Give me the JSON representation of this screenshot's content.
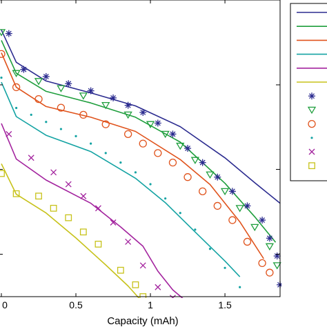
{
  "chart_data": {
    "type": "line",
    "xlabel": "Capacity (mAh)",
    "ylabel": "",
    "title": "",
    "xlim": [
      0,
      1.87
    ],
    "ylim": [
      0,
      1
    ],
    "x_ticks": [
      "0",
      "0.5",
      "1",
      "1.5"
    ],
    "x_tick_values": [
      0,
      0.5,
      1,
      1.5
    ],
    "y_tick_values": [
      0.143,
      0.429,
      0.714
    ],
    "legend_position": "right",
    "grid": false,
    "colors": [
      "#2b2b8f",
      "#1e9e3c",
      "#e0531c",
      "#14a3a3",
      "#a3239e",
      "#c7c21a"
    ],
    "series": [
      {
        "kind": "line",
        "color": "#2b2b8f",
        "x": [
          0,
          0.1,
          0.3,
          0.6,
          0.9,
          1.2,
          1.5,
          1.7,
          1.87
        ],
        "y": [
          0.899,
          0.79,
          0.727,
          0.687,
          0.643,
          0.573,
          0.468,
          0.384,
          0.315
        ]
      },
      {
        "kind": "line",
        "color": "#1e9e3c",
        "x": [
          0,
          0.1,
          0.3,
          0.6,
          0.9,
          1.2,
          1.5,
          1.7,
          1.84
        ],
        "y": [
          0.864,
          0.753,
          0.692,
          0.653,
          0.605,
          0.521,
          0.382,
          0.269,
          0.183
        ]
      },
      {
        "kind": "line",
        "color": "#e0531c",
        "x": [
          0,
          0.1,
          0.3,
          0.6,
          0.9,
          1.2,
          1.4,
          1.6,
          1.76
        ],
        "y": [
          0.822,
          0.706,
          0.641,
          0.605,
          0.557,
          0.462,
          0.378,
          0.252,
          0.128
        ]
      },
      {
        "kind": "line",
        "color": "#14a3a3",
        "x": [
          0,
          0.1,
          0.3,
          0.6,
          0.9,
          1.1,
          1.3,
          1.5,
          1.6
        ],
        "y": [
          0.723,
          0.607,
          0.544,
          0.489,
          0.399,
          0.317,
          0.218,
          0.12,
          0.067
        ]
      },
      {
        "kind": "line",
        "color": "#a3239e",
        "x": [
          0,
          0.1,
          0.3,
          0.6,
          0.8,
          0.95,
          1.05,
          1.15,
          1.25
        ],
        "y": [
          0.584,
          0.464,
          0.393,
          0.315,
          0.235,
          0.17,
          0.086,
          0.023,
          -0.02
        ]
      },
      {
        "kind": "line",
        "color": "#c7c21a",
        "x": [
          0,
          0.1,
          0.3,
          0.5,
          0.7,
          0.85,
          0.95
        ],
        "y": [
          0.448,
          0.345,
          0.282,
          0.198,
          0.107,
          0.036,
          -0.02
        ]
      },
      {
        "kind": "markers",
        "marker": "asterisk",
        "color": "#2b2b8f",
        "x": [
          0.05,
          0.15,
          0.3,
          0.45,
          0.6,
          0.75,
          0.85,
          0.95,
          1.05,
          1.15,
          1.25,
          1.35,
          1.45,
          1.55,
          1.65,
          1.75,
          1.8,
          1.85,
          1.87
        ],
        "y": [
          0.887,
          0.766,
          0.742,
          0.718,
          0.694,
          0.67,
          0.645,
          0.621,
          0.585,
          0.548,
          0.5,
          0.452,
          0.403,
          0.355,
          0.306,
          0.258,
          0.197,
          0.137,
          0.04
        ]
      },
      {
        "kind": "markers",
        "marker": "triangle-down",
        "color": "#1e9e3c",
        "x": [
          0,
          0.1,
          0.25,
          0.4,
          0.55,
          0.7,
          0.85,
          1.0,
          1.1,
          1.2,
          1.3,
          1.4,
          1.5,
          1.6,
          1.7,
          1.8,
          1.85
        ],
        "y": [
          0.891,
          0.753,
          0.726,
          0.702,
          0.677,
          0.645,
          0.613,
          0.581,
          0.548,
          0.508,
          0.46,
          0.411,
          0.355,
          0.298,
          0.234,
          0.169,
          0.105
        ]
      },
      {
        "kind": "markers",
        "marker": "circle",
        "color": "#e0531c",
        "x": [
          0,
          0.1,
          0.25,
          0.4,
          0.55,
          0.7,
          0.85,
          0.95,
          1.05,
          1.15,
          1.25,
          1.35,
          1.45,
          1.55,
          1.65,
          1.75,
          1.8
        ],
        "y": [
          0.818,
          0.706,
          0.666,
          0.637,
          0.613,
          0.581,
          0.548,
          0.516,
          0.484,
          0.452,
          0.403,
          0.355,
          0.306,
          0.258,
          0.185,
          0.113,
          0.081
        ]
      },
      {
        "kind": "markers",
        "marker": "dot",
        "color": "#14a3a3",
        "x": [
          0,
          0.1,
          0.2,
          0.3,
          0.4,
          0.5,
          0.6,
          0.7,
          0.8,
          0.9,
          1.0,
          1.1,
          1.2,
          1.3,
          1.4,
          1.5,
          1.6
        ],
        "y": [
          0.738,
          0.636,
          0.613,
          0.589,
          0.565,
          0.541,
          0.516,
          0.484,
          0.452,
          0.419,
          0.379,
          0.331,
          0.282,
          0.226,
          0.161,
          0.097,
          0.032
        ]
      },
      {
        "kind": "markers",
        "marker": "x",
        "color": "#a3239e",
        "x": [
          0.05,
          0.2,
          0.35,
          0.45,
          0.55,
          0.65,
          0.75,
          0.85,
          0.95,
          1.05,
          1.15,
          1.2
        ],
        "y": [
          0.548,
          0.468,
          0.419,
          0.379,
          0.339,
          0.298,
          0.25,
          0.185,
          0.105,
          0.032,
          -0.004,
          -0.016
        ]
      },
      {
        "kind": "markers",
        "marker": "square",
        "color": "#c7c21a",
        "x": [
          0,
          0.1,
          0.25,
          0.35,
          0.45,
          0.55,
          0.65,
          0.8,
          0.9,
          0.95
        ],
        "y": [
          0.415,
          0.347,
          0.339,
          0.298,
          0.266,
          0.218,
          0.177,
          0.089,
          0.04,
          0.0
        ]
      }
    ]
  }
}
